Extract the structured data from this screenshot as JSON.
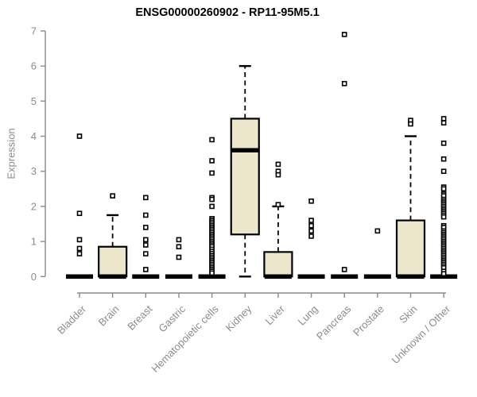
{
  "title": "ENSG00000260902 - RP11-95M5.1",
  "chart_data": {
    "type": "boxplot",
    "title": "ENSG00000260902 - RP11-95M5.1",
    "ylabel": "Expression",
    "ylim": [
      0,
      7
    ],
    "yticks": [
      0,
      1,
      2,
      3,
      4,
      5,
      6,
      7
    ],
    "grid": false,
    "categories": [
      "Bladder",
      "Brain",
      "Breast",
      "Gastric",
      "Hematopoietic cells",
      "Kidney",
      "Liver",
      "Lung",
      "Pancreas",
      "Prostate",
      "Skin",
      "Unknown / Other"
    ],
    "series": [
      {
        "label": "Bladder",
        "q1": 0,
        "median": 0,
        "q3": 0,
        "whisker_low": 0,
        "whisker_high": 0,
        "outliers": [
          4.0,
          1.8,
          1.05,
          0.8,
          0.65
        ]
      },
      {
        "label": "Brain",
        "q1": 0,
        "median": 0,
        "q3": 0.85,
        "whisker_low": 0,
        "whisker_high": 1.75,
        "outliers": [
          2.3
        ]
      },
      {
        "label": "Breast",
        "q1": 0,
        "median": 0,
        "q3": 0,
        "whisker_low": 0,
        "whisker_high": 0,
        "outliers": [
          2.25,
          1.75,
          1.4,
          1.05,
          0.9,
          0.65,
          0.2
        ]
      },
      {
        "label": "Gastric",
        "q1": 0,
        "median": 0,
        "q3": 0,
        "whisker_low": 0,
        "whisker_high": 0,
        "outliers": [
          1.05,
          0.85,
          0.55
        ]
      },
      {
        "label": "Hematopoietic cells",
        "q1": 0,
        "median": 0,
        "q3": 0,
        "whisker_low": 0,
        "whisker_high": 0,
        "outliers": [
          3.9,
          3.3,
          2.95,
          2.25,
          2.2,
          2.0,
          1.65,
          1.6,
          1.55,
          1.5,
          1.45,
          1.4,
          1.35,
          1.3,
          1.25,
          1.2,
          1.15,
          1.1,
          1.05,
          1.0,
          0.95,
          0.9,
          0.85,
          0.78,
          0.72,
          0.66,
          0.6,
          0.55,
          0.5,
          0.45,
          0.4,
          0.35,
          0.3,
          0.25,
          0.2,
          0.15,
          0.1
        ]
      },
      {
        "label": "Kidney",
        "q1": 1.2,
        "median": 3.6,
        "q3": 4.5,
        "whisker_low": 0,
        "whisker_high": 6.0,
        "outliers": []
      },
      {
        "label": "Liver",
        "q1": 0,
        "median": 0,
        "q3": 0.7,
        "whisker_low": 0,
        "whisker_high": 2.0,
        "outliers": [
          3.2,
          3.0,
          2.9,
          2.05
        ]
      },
      {
        "label": "Lung",
        "q1": 0,
        "median": 0,
        "q3": 0,
        "whisker_low": 0,
        "whisker_high": 0,
        "outliers": [
          2.15,
          1.6,
          1.45,
          1.3,
          1.15
        ]
      },
      {
        "label": "Pancreas",
        "q1": 0,
        "median": 0,
        "q3": 0,
        "whisker_low": 0,
        "whisker_high": 0,
        "outliers": [
          6.9,
          5.5,
          0.2
        ]
      },
      {
        "label": "Prostate",
        "q1": 0,
        "median": 0,
        "q3": 0,
        "whisker_low": 0,
        "whisker_high": 0,
        "outliers": [
          1.3
        ]
      },
      {
        "label": "Skin",
        "q1": 0,
        "median": 0,
        "q3": 1.6,
        "whisker_low": 0,
        "whisker_high": 4.0,
        "outliers": [
          4.45,
          4.35
        ]
      },
      {
        "label": "Unknown / Other",
        "q1": 0,
        "median": 0,
        "q3": 0,
        "whisker_low": 0,
        "whisker_high": 0,
        "outliers": [
          4.5,
          4.38,
          3.8,
          3.35,
          3.0,
          2.55,
          2.5,
          2.35,
          2.3,
          2.2,
          2.15,
          2.1,
          2.05,
          2.0,
          1.95,
          1.9,
          1.85,
          1.8,
          1.75,
          1.7,
          1.45,
          1.4,
          1.3,
          1.25,
          1.2,
          1.15,
          1.1,
          1.05,
          1.0,
          0.95,
          0.9,
          0.85,
          0.8,
          0.75,
          0.7,
          0.65,
          0.6,
          0.55,
          0.5,
          0.45,
          0.4,
          0.35,
          0.3,
          0.25,
          0.15,
          0.08
        ]
      }
    ],
    "colors": {
      "box_fill": "#ECE7CC",
      "box_stroke": "#000000",
      "median": "#000000",
      "outlier": "#000000",
      "axis": "#8a8a8a",
      "tick_text": "#8c8c8c",
      "title_text": "#000000",
      "background": "#ffffff"
    }
  }
}
